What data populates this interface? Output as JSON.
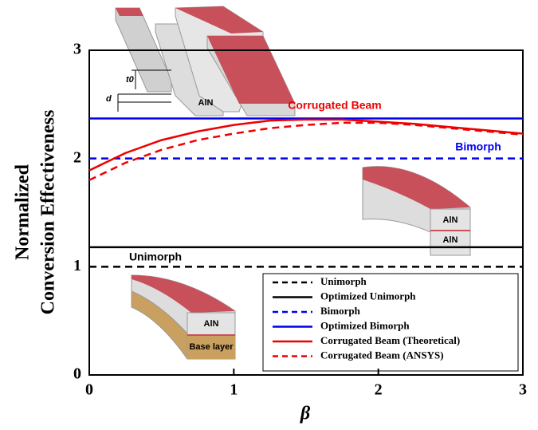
{
  "chart_data": {
    "type": "line",
    "xlabel": "β",
    "ylabel": [
      "Normalized",
      "Conversion Effectiveness"
    ],
    "xlim": [
      0,
      3
    ],
    "ylim": [
      0,
      3
    ],
    "xticks": [
      0,
      1,
      2,
      3
    ],
    "yticks": [
      0,
      1,
      2,
      3
    ],
    "series": [
      {
        "name": "Unimorph",
        "color": "#000000",
        "dash": true,
        "x": [
          0,
          3
        ],
        "values": [
          1.0,
          1.0
        ]
      },
      {
        "name": "Optimized Unimorph",
        "color": "#000000",
        "dash": false,
        "x": [
          0,
          3
        ],
        "values": [
          1.18,
          1.18
        ]
      },
      {
        "name": "Bimorph",
        "color": "#0000ee",
        "dash": true,
        "x": [
          0,
          3
        ],
        "values": [
          2.0,
          2.0
        ]
      },
      {
        "name": "Optimized Bimorph",
        "color": "#0000ee",
        "dash": false,
        "x": [
          0,
          3
        ],
        "values": [
          2.37,
          2.37
        ]
      },
      {
        "name": "Corrugated Beam (Theoretical)",
        "color": "#ee0000",
        "dash": false,
        "x": [
          0,
          0.25,
          0.5,
          0.75,
          1,
          1.25,
          1.5,
          1.75,
          2,
          2.25,
          2.5,
          2.75,
          3
        ],
        "values": [
          1.89,
          2.05,
          2.17,
          2.25,
          2.31,
          2.35,
          2.36,
          2.36,
          2.34,
          2.32,
          2.29,
          2.26,
          2.23
        ]
      },
      {
        "name": "Corrugated Beam (ANSYS)",
        "color": "#ee0000",
        "dash": true,
        "x": [
          0,
          0.25,
          0.5,
          0.75,
          1,
          1.25,
          1.5,
          1.75,
          2,
          2.25,
          2.5,
          2.75,
          3
        ],
        "values": [
          1.8,
          1.96,
          2.08,
          2.17,
          2.23,
          2.28,
          2.31,
          2.33,
          2.33,
          2.31,
          2.28,
          2.25,
          2.22
        ]
      }
    ],
    "annotations": [
      {
        "text": "Corrugated Beam",
        "color": "#ee0000"
      },
      {
        "text": "Bimorph",
        "color": "#0000ee"
      },
      {
        "text": "Unimorph",
        "color": "#000000"
      }
    ],
    "illustrations": {
      "corrugated": [
        "AlN",
        "t0",
        "d"
      ],
      "bimorph": [
        "AlN",
        "AlN"
      ],
      "unimorph": [
        "AlN",
        "Base layer"
      ]
    }
  }
}
